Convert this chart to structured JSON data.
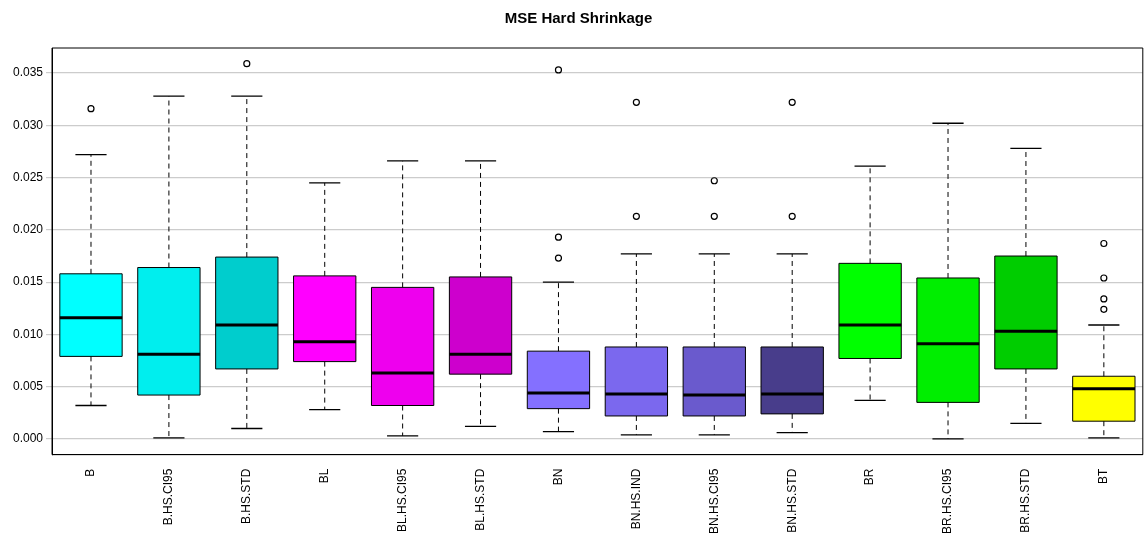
{
  "chart_data": {
    "type": "box",
    "title": "MSE Hard Shrinkage",
    "categories": [
      "B",
      "B.HS.CI95",
      "B.HS.STD",
      "BL",
      "BL.HS.CI95",
      "BL.HS.STD",
      "BN",
      "BN.HS.IND",
      "BN.HS.CI95",
      "BN.HS.STD",
      "BR",
      "BR.HS.CI95",
      "BR.HS.STD",
      "BT"
    ],
    "colors": [
      "#00ffff",
      "#00eeee",
      "#00cdcd",
      "#ff00ff",
      "#ee00ee",
      "#cd00cd",
      "#8470ff",
      "#7b68ee",
      "#6a5acd",
      "#483d8b",
      "#00ff00",
      "#00ee00",
      "#00cd00",
      "#ffff00"
    ],
    "boxes": [
      {
        "low": 0.0032,
        "q1": 0.0079,
        "median": 0.0116,
        "q3": 0.0158,
        "high": 0.0272,
        "outliers": [
          0.0316
        ]
      },
      {
        "low": 0.0001,
        "q1": 0.0042,
        "median": 0.0081,
        "q3": 0.0164,
        "high": 0.0328
      },
      {
        "low": 0.001,
        "q1": 0.0067,
        "median": 0.0109,
        "q3": 0.0174,
        "high": 0.0328,
        "outliers": [
          0.0359
        ]
      },
      {
        "low": 0.0028,
        "q1": 0.0074,
        "median": 0.0093,
        "q3": 0.0156,
        "high": 0.0245
      },
      {
        "low": 0.0003,
        "q1": 0.0032,
        "median": 0.0063,
        "q3": 0.0145,
        "high": 0.0266
      },
      {
        "low": 0.0012,
        "q1": 0.0062,
        "median": 0.0081,
        "q3": 0.0155,
        "high": 0.0266
      },
      {
        "low": 0.0007,
        "q1": 0.0029,
        "median": 0.0044,
        "q3": 0.0084,
        "high": 0.015,
        "outliers": [
          0.0353,
          0.0193,
          0.0173
        ]
      },
      {
        "low": 0.0004,
        "q1": 0.0022,
        "median": 0.0043,
        "q3": 0.0088,
        "high": 0.0177,
        "outliers": [
          0.0322,
          0.0213
        ]
      },
      {
        "low": 0.0004,
        "q1": 0.0022,
        "median": 0.0042,
        "q3": 0.0088,
        "high": 0.0177,
        "outliers": [
          0.0247,
          0.0213
        ]
      },
      {
        "low": 0.0006,
        "q1": 0.0024,
        "median": 0.0043,
        "q3": 0.0088,
        "high": 0.0177,
        "outliers": [
          0.0322,
          0.0213
        ]
      },
      {
        "low": 0.0037,
        "q1": 0.0077,
        "median": 0.0109,
        "q3": 0.0168,
        "high": 0.0261
      },
      {
        "low": 0.0,
        "q1": 0.0035,
        "median": 0.0091,
        "q3": 0.0154,
        "high": 0.0302
      },
      {
        "low": 0.0015,
        "q1": 0.0067,
        "median": 0.0103,
        "q3": 0.0175,
        "high": 0.0278
      },
      {
        "low": 0.0001,
        "q1": 0.0017,
        "median": 0.0048,
        "q3": 0.006,
        "high": 0.0109,
        "outliers": [
          0.0187,
          0.0154,
          0.0134,
          0.0124
        ]
      }
    ],
    "ylim": [
      -0.0015,
      0.0374
    ],
    "yticks": [
      {
        "value": 0,
        "label": "0.000"
      },
      {
        "value": 0.005,
        "label": "0.005"
      },
      {
        "value": 0.01,
        "label": "0.010"
      },
      {
        "value": 0.015,
        "label": "0.015"
      },
      {
        "value": 0.02,
        "label": "0.020"
      },
      {
        "value": 0.025,
        "label": "0.025"
      },
      {
        "value": 0.03,
        "label": "0.030"
      },
      {
        "value": 0.035,
        "label": "0.035"
      }
    ],
    "grid": "y"
  }
}
